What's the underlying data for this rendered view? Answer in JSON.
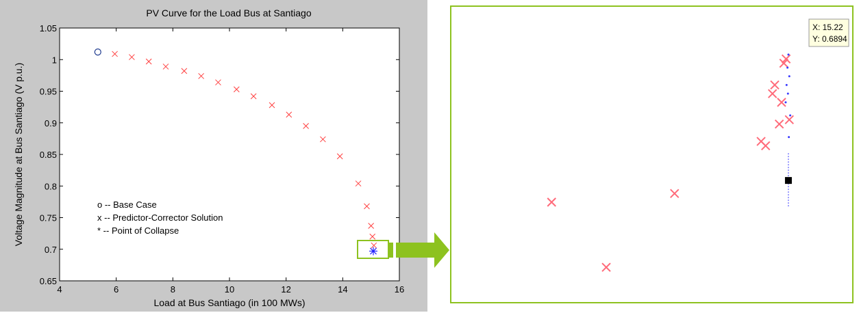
{
  "chart_data": [
    {
      "type": "scatter",
      "title": "PV Curve for the Load Bus at Santiago",
      "xlabel": "Load at Bus Santiago (in 100 MWs)",
      "ylabel": "Voltage Magnitude at Bus Santiago (V p.u.)",
      "xlim": [
        4,
        16
      ],
      "ylim": [
        0.65,
        1.05
      ],
      "xticks": [
        4,
        6,
        8,
        10,
        12,
        14,
        16
      ],
      "yticks": [
        0.65,
        0.7,
        0.75,
        0.8,
        0.85,
        0.9,
        0.95,
        1,
        1.05
      ],
      "ytick_labels": [
        "0.65",
        "0.7",
        "0.75",
        "0.8",
        "0.85",
        "0.9",
        "0.95",
        "1",
        "1.05"
      ],
      "grid": false,
      "series": [
        {
          "marker": "o",
          "color": "#1f3b8f",
          "x": [
            5.35
          ],
          "y": [
            1.012
          ]
        },
        {
          "marker": "x",
          "color": "#ff4040",
          "x": [
            5.95,
            6.55,
            7.15,
            7.75,
            8.4,
            9.0,
            9.6,
            10.25,
            10.85,
            11.5,
            12.1,
            12.7,
            13.3,
            13.9,
            14.55,
            14.85,
            15.0,
            15.05,
            15.1
          ],
          "y": [
            1.009,
            1.004,
            0.997,
            0.989,
            0.982,
            0.974,
            0.964,
            0.953,
            0.942,
            0.928,
            0.913,
            0.895,
            0.874,
            0.847,
            0.804,
            0.768,
            0.737,
            0.72,
            0.706
          ]
        },
        {
          "marker": "*",
          "color": "#2222ff",
          "x": [
            15.08
          ],
          "y": [
            0.697
          ]
        }
      ],
      "annotations": [
        "o -- Base Case",
        "x -- Predictor-Corrector Solution",
        "* -- Point of Collapse"
      ]
    },
    {
      "type": "scatter",
      "zoom_of": "region near point of collapse",
      "datatip": {
        "x_label": "X: 15.22",
        "y_label": "Y: 0.6894"
      },
      "series": [
        {
          "marker": "x",
          "color": "#ff6b7a",
          "x": [
            14.7,
            14.82,
            14.97,
            15.16,
            15.17,
            15.185,
            15.19,
            15.2,
            15.205,
            15.21,
            15.215,
            15.222
          ],
          "y": [
            0.6889,
            0.6874,
            0.6891,
            0.6903,
            0.6902,
            0.6914,
            0.6916,
            0.6907,
            0.6912,
            0.6921,
            0.6922,
            0.6908
          ]
        },
        {
          "marker": "dot",
          "color": "#3a3aff",
          "x": [
            15.214,
            15.216,
            15.218,
            15.22,
            15.222,
            15.224,
            15.221,
            15.219
          ],
          "y": [
            0.6912,
            0.6916,
            0.692,
            0.6923,
            0.6918,
            0.6909,
            0.6904,
            0.6914
          ]
        },
        {
          "marker": "datatip",
          "color": "#000000",
          "x": [
            15.22
          ],
          "y": [
            0.6894
          ]
        }
      ]
    }
  ],
  "colors": {
    "figure_bg": "#c8c8c8",
    "zoom_border": "#8dc21f",
    "arrow": "#8dc21f"
  }
}
